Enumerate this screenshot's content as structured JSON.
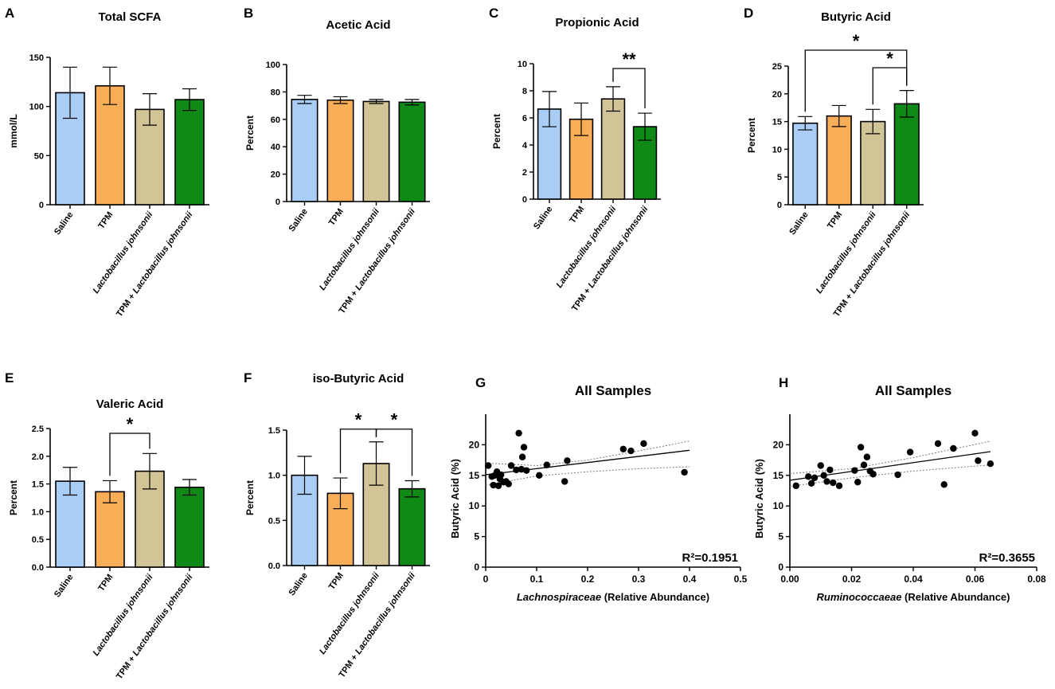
{
  "chart_data": [
    {
      "panel": "A",
      "type": "bar",
      "title": "Total SCFA",
      "ylabel": "mmol/L",
      "xlabel": "",
      "ylim": [
        0,
        150
      ],
      "yticks": [
        0,
        50,
        100,
        150
      ],
      "categories": [
        "Saline",
        "TPM",
        "Lactobacillus johnsonii",
        "TPM + Lactobacillus johnsonii"
      ],
      "values": [
        114,
        121,
        97,
        107
      ],
      "errors": [
        26,
        19,
        16,
        11
      ],
      "colors": [
        "#a9cdf5",
        "#f8ad57",
        "#d1c496",
        "#0f8a16"
      ],
      "significance": []
    },
    {
      "panel": "B",
      "type": "bar",
      "title": "Acetic Acid",
      "ylabel": "Percent",
      "xlabel": "",
      "ylim": [
        0,
        100
      ],
      "yticks": [
        0,
        20,
        40,
        60,
        80,
        100
      ],
      "categories": [
        "Saline",
        "TPM",
        "Lactobacillus johnsonii",
        "TPM + Lactobacillus johnsonii"
      ],
      "values": [
        74.5,
        74,
        73,
        72.5
      ],
      "errors": [
        3,
        2.5,
        1.5,
        2
      ],
      "colors": [
        "#a9cdf5",
        "#f8ad57",
        "#d1c496",
        "#0f8a16"
      ],
      "significance": []
    },
    {
      "panel": "C",
      "type": "bar",
      "title": "Propionic Acid",
      "ylabel": "Percent",
      "xlabel": "",
      "ylim": [
        0,
        10
      ],
      "yticks": [
        0,
        2,
        4,
        6,
        8,
        10
      ],
      "categories": [
        "Saline",
        "TPM",
        "Lactobacillus johnsonii",
        "TPM + Lactobacillus johnsonii"
      ],
      "values": [
        6.65,
        5.9,
        7.4,
        5.35
      ],
      "errors": [
        1.3,
        1.2,
        0.9,
        1.0
      ],
      "colors": [
        "#a9cdf5",
        "#f8ad57",
        "#d1c496",
        "#0f8a16"
      ],
      "significance": [
        {
          "from": 2,
          "to": 3,
          "label": "**"
        }
      ]
    },
    {
      "panel": "D",
      "type": "bar",
      "title": "Butyric Acid",
      "ylabel": "Percent",
      "xlabel": "",
      "ylim": [
        0,
        25
      ],
      "yticks": [
        0,
        5,
        10,
        15,
        20,
        25
      ],
      "categories": [
        "Saline",
        "TPM",
        "Lactobacillus johnsonii",
        "TPM + Lactobacillus johnsonii"
      ],
      "values": [
        14.7,
        16,
        15,
        18.2
      ],
      "errors": [
        1.2,
        1.9,
        2.2,
        2.4
      ],
      "colors": [
        "#a9cdf5",
        "#f8ad57",
        "#d1c496",
        "#0f8a16"
      ],
      "significance": [
        {
          "from": 0,
          "to": 3,
          "label": "*"
        },
        {
          "from": 2,
          "to": 3,
          "label": "*"
        }
      ]
    },
    {
      "panel": "E",
      "type": "bar",
      "title": "Valeric Acid",
      "ylabel": "Percent",
      "xlabel": "",
      "ylim": [
        0,
        2.5
      ],
      "yticks": [
        "0.0",
        "0.5",
        "1.0",
        "1.5",
        "2.0",
        "2.5"
      ],
      "categories": [
        "Saline",
        "TPM",
        "Lactobacillus johnsonii",
        "TPM + Lactobacillus johnsonii"
      ],
      "values": [
        1.55,
        1.36,
        1.73,
        1.44
      ],
      "errors": [
        0.25,
        0.2,
        0.32,
        0.14
      ],
      "colors": [
        "#a9cdf5",
        "#f8ad57",
        "#d1c496",
        "#0f8a16"
      ],
      "significance": [
        {
          "from": 1,
          "to": 2,
          "label": "*"
        }
      ]
    },
    {
      "panel": "F",
      "type": "bar",
      "title": "iso-Butyric Acid",
      "ylabel": "Percent",
      "xlabel": "",
      "ylim": [
        0,
        1.5
      ],
      "yticks": [
        "0.0",
        "0.5",
        "1.0",
        "1.5"
      ],
      "categories": [
        "Saline",
        "TPM",
        "Lactobacillus johnsonii",
        "TPM + Lactobacillus johnsonii"
      ],
      "values": [
        1.0,
        0.8,
        1.13,
        0.85
      ],
      "errors": [
        0.21,
        0.17,
        0.24,
        0.09
      ],
      "colors": [
        "#a9cdf5",
        "#f8ad57",
        "#d1c496",
        "#0f8a16"
      ],
      "significance": [
        {
          "from": 1,
          "to": 2,
          "label": "*"
        },
        {
          "from": 2,
          "to": 3,
          "label": "*"
        }
      ]
    },
    {
      "panel": "G",
      "type": "scatter",
      "title": "All Samples",
      "ylabel": "Butyric Acid (%)",
      "xlabel_italic": "Lachnospiraceae",
      "xlabel_rest": " (Relative Abundance)",
      "xlim": [
        0,
        0.5
      ],
      "ylim": [
        0,
        25
      ],
      "xticks": [
        "0",
        "0.1",
        "0.2",
        "0.3",
        "0.4",
        "0.5"
      ],
      "yticks": [
        "0",
        "5",
        "10",
        "15",
        "20"
      ],
      "r2_label": "R²=0.1951",
      "points": [
        [
          0.005,
          16.6
        ],
        [
          0.012,
          14.8
        ],
        [
          0.015,
          13.4
        ],
        [
          0.018,
          15.0
        ],
        [
          0.022,
          15.6
        ],
        [
          0.025,
          13.3
        ],
        [
          0.028,
          14.4
        ],
        [
          0.03,
          15.1
        ],
        [
          0.035,
          13.9
        ],
        [
          0.04,
          14.0
        ],
        [
          0.045,
          13.6
        ],
        [
          0.05,
          16.6
        ],
        [
          0.06,
          15.9
        ],
        [
          0.065,
          21.9
        ],
        [
          0.07,
          16.0
        ],
        [
          0.072,
          18.0
        ],
        [
          0.075,
          19.6
        ],
        [
          0.08,
          15.8
        ],
        [
          0.105,
          15.0
        ],
        [
          0.12,
          16.7
        ],
        [
          0.155,
          14.0
        ],
        [
          0.16,
          17.4
        ],
        [
          0.27,
          19.3
        ],
        [
          0.285,
          19.0
        ],
        [
          0.31,
          20.2
        ],
        [
          0.39,
          15.5
        ]
      ],
      "fit": {
        "slope": 10.0,
        "intercept": 15.1
      },
      "ci_upper": [
        [
          0,
          17.0
        ],
        [
          0.1,
          16.6
        ],
        [
          0.2,
          17.5
        ],
        [
          0.3,
          19.0
        ],
        [
          0.4,
          20.6
        ]
      ],
      "ci_lower": [
        [
          0,
          13.4
        ],
        [
          0.1,
          14.9
        ],
        [
          0.2,
          15.6
        ],
        [
          0.3,
          16.1
        ],
        [
          0.4,
          16.4
        ]
      ]
    },
    {
      "panel": "H",
      "type": "scatter",
      "title": "All Samples",
      "ylabel": "Butyric Acid (%)",
      "xlabel_italic": "Ruminococcaeae",
      "xlabel_rest": " (Relative Abundance)",
      "xlim": [
        0,
        0.08
      ],
      "ylim": [
        0,
        25
      ],
      "xticks": [
        "0.00",
        "0.02",
        "0.04",
        "0.06",
        "0.08"
      ],
      "yticks": [
        "0",
        "5",
        "10",
        "15",
        "20"
      ],
      "r2_label": "R²=0.3655",
      "points": [
        [
          0.002,
          13.3
        ],
        [
          0.006,
          14.8
        ],
        [
          0.007,
          13.7
        ],
        [
          0.008,
          14.6
        ],
        [
          0.01,
          16.6
        ],
        [
          0.011,
          15.0
        ],
        [
          0.012,
          14.0
        ],
        [
          0.013,
          15.9
        ],
        [
          0.014,
          13.8
        ],
        [
          0.016,
          13.3
        ],
        [
          0.021,
          15.8
        ],
        [
          0.022,
          13.9
        ],
        [
          0.023,
          19.6
        ],
        [
          0.024,
          16.7
        ],
        [
          0.025,
          18.0
        ],
        [
          0.026,
          15.7
        ],
        [
          0.027,
          15.2
        ],
        [
          0.035,
          15.1
        ],
        [
          0.039,
          18.8
        ],
        [
          0.048,
          20.2
        ],
        [
          0.05,
          13.5
        ],
        [
          0.053,
          19.4
        ],
        [
          0.06,
          21.9
        ],
        [
          0.061,
          17.4
        ],
        [
          0.065,
          16.9
        ]
      ],
      "fit": {
        "slope": 72.0,
        "intercept": 14.2
      },
      "ci_upper": [
        [
          0,
          15.3
        ],
        [
          0.02,
          16.1
        ],
        [
          0.04,
          17.9
        ],
        [
          0.065,
          20.6
        ]
      ],
      "ci_lower": [
        [
          0,
          13.2
        ],
        [
          0.02,
          14.6
        ],
        [
          0.04,
          15.7
        ],
        [
          0.065,
          16.7
        ]
      ]
    }
  ]
}
